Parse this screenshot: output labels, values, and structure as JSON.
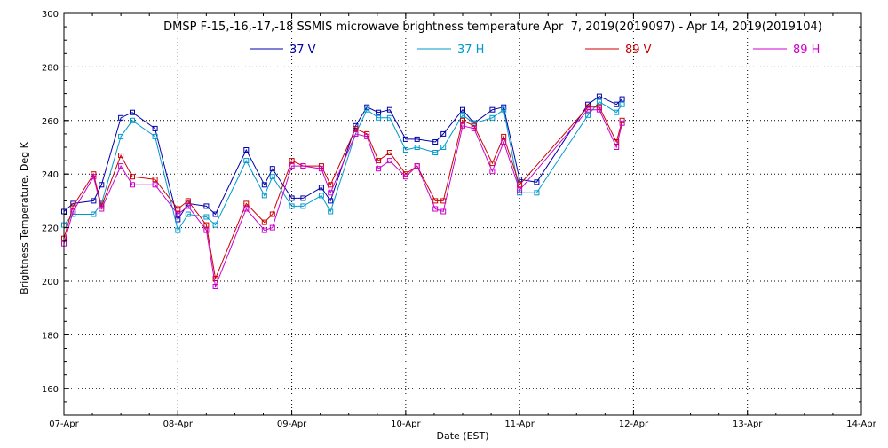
{
  "chart_data": {
    "type": "line",
    "title": "DMSP F-15,-16,-17,-18 SSMIS microwave brightness temperature Apr  7, 2019(2019097) - Apr 14, 2019(2019104)",
    "xlabel": "Date (EST)",
    "ylabel": "Brightness Temperature, Deg K",
    "xlim": [
      0,
      7
    ],
    "ylim": [
      150,
      300
    ],
    "yticks": [
      160,
      180,
      200,
      220,
      240,
      260,
      280,
      300
    ],
    "xticks": [
      {
        "v": 0,
        "label": "07-Apr"
      },
      {
        "v": 1,
        "label": "08-Apr"
      },
      {
        "v": 2,
        "label": "09-Apr"
      },
      {
        "v": 3,
        "label": "10-Apr"
      },
      {
        "v": 4,
        "label": "11-Apr"
      },
      {
        "v": 5,
        "label": "12-Apr"
      },
      {
        "v": 6,
        "label": "13-Apr"
      },
      {
        "v": 7,
        "label": "14-Apr"
      }
    ],
    "grid": true,
    "legend_position": "top-center",
    "series": [
      {
        "name": "37 V",
        "color": "#0000aa",
        "x": [
          0.0,
          0.08,
          0.26,
          0.33,
          0.5,
          0.6,
          0.8,
          1.0,
          1.09,
          1.25,
          1.33,
          1.6,
          1.76,
          1.83,
          2.0,
          2.1,
          2.26,
          2.34,
          2.56,
          2.66,
          2.76,
          2.86,
          3.0,
          3.1,
          3.26,
          3.33,
          3.5,
          3.6,
          3.76,
          3.86,
          4.0,
          4.15,
          4.6,
          4.7,
          4.85,
          4.9
        ],
        "y": [
          226,
          229,
          230,
          236,
          261,
          263,
          257,
          223,
          229,
          228,
          225,
          249,
          236,
          242,
          231,
          231,
          235,
          230,
          258,
          265,
          263,
          264,
          253,
          253,
          252,
          255,
          264,
          259,
          264,
          265,
          238,
          237,
          266,
          269,
          266,
          268
        ]
      },
      {
        "name": "37 H",
        "color": "#0099cc",
        "x": [
          0.0,
          0.08,
          0.26,
          0.33,
          0.5,
          0.6,
          0.8,
          1.0,
          1.09,
          1.25,
          1.33,
          1.6,
          1.76,
          1.83,
          2.0,
          2.1,
          2.26,
          2.34,
          2.56,
          2.66,
          2.76,
          2.86,
          3.0,
          3.1,
          3.26,
          3.33,
          3.5,
          3.6,
          3.76,
          3.86,
          4.0,
          4.15,
          4.6,
          4.7,
          4.85,
          4.9
        ],
        "y": [
          221,
          225,
          225,
          229,
          254,
          260,
          254,
          219,
          225,
          224,
          221,
          245,
          232,
          239,
          228,
          228,
          232,
          226,
          255,
          264,
          261,
          261,
          249,
          250,
          248,
          250,
          262,
          259,
          261,
          264,
          233,
          233,
          262,
          267,
          263,
          266
        ]
      },
      {
        "name": "89 V",
        "color": "#cc0000",
        "x": [
          0.0,
          0.08,
          0.26,
          0.33,
          0.5,
          0.6,
          0.8,
          1.0,
          1.09,
          1.25,
          1.33,
          1.6,
          1.76,
          1.83,
          2.0,
          2.1,
          2.26,
          2.34,
          2.56,
          2.66,
          2.76,
          2.86,
          3.0,
          3.1,
          3.26,
          3.33,
          3.5,
          3.6,
          3.76,
          3.86,
          4.0,
          4.6,
          4.7,
          4.85,
          4.9
        ],
        "y": [
          216,
          228,
          240,
          228,
          247,
          239,
          238,
          227,
          230,
          221,
          201,
          229,
          222,
          225,
          245,
          243,
          243,
          236,
          257,
          255,
          245,
          248,
          240,
          243,
          230,
          230,
          260,
          258,
          244,
          254,
          236,
          265,
          265,
          252,
          260
        ]
      },
      {
        "name": "89 H",
        "color": "#cc00cc",
        "x": [
          0.0,
          0.08,
          0.26,
          0.33,
          0.5,
          0.6,
          0.8,
          1.0,
          1.09,
          1.25,
          1.33,
          1.6,
          1.76,
          1.83,
          2.0,
          2.1,
          2.26,
          2.34,
          2.56,
          2.66,
          2.76,
          2.86,
          3.0,
          3.1,
          3.26,
          3.33,
          3.5,
          3.6,
          3.76,
          3.86,
          4.0,
          4.6,
          4.7,
          4.85,
          4.9
        ],
        "y": [
          214,
          226,
          239,
          227,
          243,
          236,
          236,
          225,
          228,
          219,
          198,
          227,
          219,
          220,
          243,
          243,
          242,
          233,
          255,
          254,
          242,
          245,
          239,
          243,
          227,
          226,
          258,
          257,
          241,
          252,
          234,
          264,
          264,
          250,
          259
        ]
      }
    ]
  }
}
